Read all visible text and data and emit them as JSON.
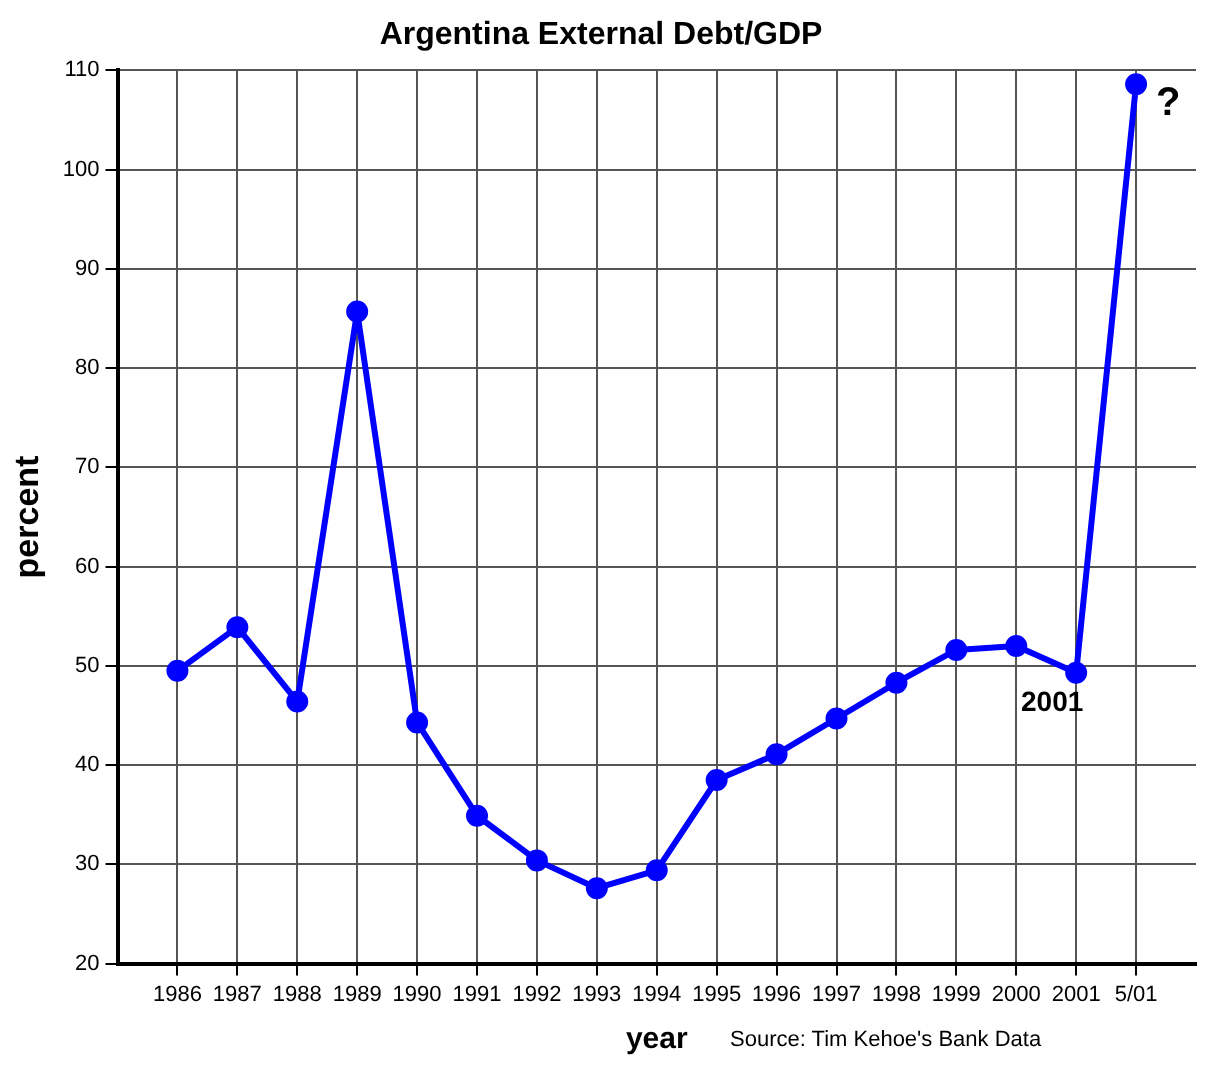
{
  "chart_data": {
    "type": "line",
    "title": "Argentina External Debt/GDP",
    "xlabel": "year",
    "ylabel": "percent",
    "categories": [
      "1986",
      "1987",
      "1988",
      "1989",
      "1990",
      "1991",
      "1992",
      "1993",
      "1994",
      "1995",
      "1996",
      "1997",
      "1998",
      "1999",
      "2000",
      "2001",
      "5/01"
    ],
    "series": [
      {
        "color": "#0000ff",
        "values": [
          49.5,
          53.9,
          46.4,
          85.7,
          44.3,
          34.9,
          30.4,
          27.6,
          29.4,
          38.5,
          41.1,
          44.7,
          48.3,
          51.6,
          52.0,
          49.3,
          108.6
        ]
      }
    ],
    "ylim": [
      20,
      110
    ],
    "yticks": [
      20,
      30,
      40,
      50,
      60,
      70,
      80,
      90,
      100,
      110
    ],
    "grid": true,
    "legend": false,
    "marker": "circle",
    "line_style": "solid",
    "annotations": [
      {
        "text": "2001",
        "x": "2001",
        "y": 49.3
      },
      {
        "text": "?",
        "x": "5/01",
        "y": 108.6
      },
      "Source: Tim Kehoe's Bank Data"
    ]
  }
}
